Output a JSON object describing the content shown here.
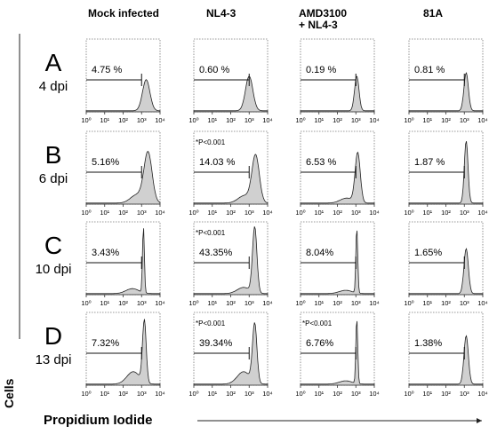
{
  "chart_data": {
    "type": "histogram-grid",
    "columns": [
      "Mock infected",
      "NL4-3",
      "AMD3100\n+ NL4-3",
      "81A"
    ],
    "rows": [
      {
        "letter": "A",
        "time": "4 dpi"
      },
      {
        "letter": "B",
        "time": "6 dpi"
      },
      {
        "letter": "C",
        "time": "10 dpi"
      },
      {
        "letter": "D",
        "time": "13 dpi"
      }
    ],
    "xlabel": "Propidium Iodide",
    "ylabel": "Cells",
    "x_scale": "log",
    "xlim": [
      1,
      10000
    ],
    "x_tick_labels": [
      "10⁰",
      "10¹",
      "10²",
      "10³",
      "10⁴"
    ],
    "gate": [
      1,
      1000
    ],
    "panels": [
      [
        {
          "pct": "4.75 %",
          "pval": "",
          "peak": 3.25,
          "width": 0.2,
          "height": 0.45,
          "shoulder": 0
        },
        {
          "pct": "0.60 %",
          "pval": "",
          "peak": 3.0,
          "width": 0.2,
          "height": 0.5,
          "shoulder": 0
        },
        {
          "pct": "0.19 %",
          "pval": "",
          "peak": 3.05,
          "width": 0.12,
          "height": 0.5,
          "shoulder": 0
        },
        {
          "pct": "0.81 %",
          "pval": "",
          "peak": 3.1,
          "width": 0.12,
          "height": 0.55,
          "shoulder": 0
        }
      ],
      [
        {
          "pct": "5.16%",
          "pval": "",
          "peak": 3.35,
          "width": 0.22,
          "height": 0.72,
          "shoulder": 0.2
        },
        {
          "pct": "14.03 %",
          "pval": "*P<0.001",
          "peak": 3.35,
          "width": 0.2,
          "height": 0.68,
          "shoulder": 0.18
        },
        {
          "pct": "6.53 %",
          "pval": "",
          "peak": 3.1,
          "width": 0.14,
          "height": 0.72,
          "shoulder": 0.12
        },
        {
          "pct": "1.87 %",
          "pval": "",
          "peak": 3.1,
          "width": 0.1,
          "height": 0.9,
          "shoulder": 0
        }
      ],
      [
        {
          "pct": "3.43%",
          "pval": "",
          "peak": 3.1,
          "width": 0.05,
          "height": 0.95,
          "shoulder": 0.12
        },
        {
          "pct": "43.35%",
          "pval": "*P<0.001",
          "peak": 3.3,
          "width": 0.12,
          "height": 0.95,
          "shoulder": 0.15
        },
        {
          "pct": "8.04%",
          "pval": "",
          "peak": 3.05,
          "width": 0.05,
          "height": 0.95,
          "shoulder": 0.08
        },
        {
          "pct": "1.65%",
          "pval": "",
          "peak": 3.1,
          "width": 0.12,
          "height": 0.65,
          "shoulder": 0
        }
      ],
      [
        {
          "pct": "7.32%",
          "pval": "",
          "peak": 3.15,
          "width": 0.1,
          "height": 0.9,
          "shoulder": 0.3
        },
        {
          "pct": "39.34%",
          "pval": "*P<0.001",
          "peak": 3.3,
          "width": 0.12,
          "height": 0.85,
          "shoulder": 0.3
        },
        {
          "pct": "6.76%",
          "pval": "*P<0.001",
          "peak": 3.05,
          "width": 0.05,
          "height": 0.95,
          "shoulder": 0.08
        },
        {
          "pct": "1.38%",
          "pval": "",
          "peak": 3.1,
          "width": 0.12,
          "height": 0.7,
          "shoulder": 0
        }
      ]
    ],
    "colors": {
      "fill": "#d0d0d0",
      "stroke": "#222222",
      "frame": "#777777"
    }
  }
}
